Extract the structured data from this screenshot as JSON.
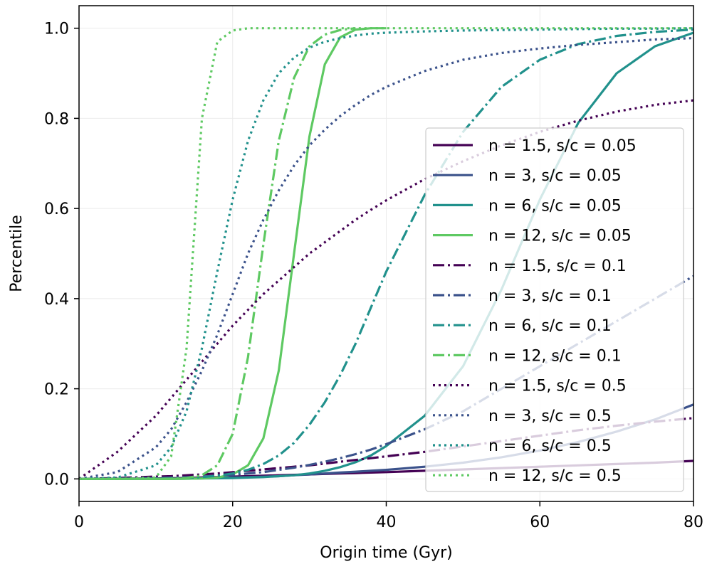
{
  "chart_data": {
    "type": "line",
    "xlabel": "Origin time (Gyr)",
    "ylabel": "Percentile",
    "xlim": [
      0,
      80
    ],
    "ylim": [
      -0.05,
      1.05
    ],
    "xticks": [
      "0",
      "20",
      "40",
      "60",
      "80"
    ],
    "yticks": [
      "0.0",
      "0.2",
      "0.4",
      "0.6",
      "0.8",
      "1.0"
    ],
    "grid": true,
    "legend_position": "center-right",
    "x": [
      0,
      5,
      10,
      12,
      14,
      16,
      18,
      20,
      22,
      24,
      26,
      28,
      30,
      32,
      34,
      36,
      38,
      40,
      45,
      50,
      55,
      60,
      65,
      70,
      75,
      80
    ],
    "series": [
      {
        "name": "n = 1.5, s/c = 0.05",
        "color": "#440154",
        "dash": "solid",
        "values": [
          0,
          0.0005,
          0.001,
          0.0015,
          0.002,
          0.003,
          0.004,
          0.005,
          0.006,
          0.007,
          0.008,
          0.009,
          0.01,
          0.011,
          0.012,
          0.013,
          0.014,
          0.015,
          0.018,
          0.021,
          0.024,
          0.027,
          0.03,
          0.033,
          0.036,
          0.04
        ]
      },
      {
        "name": "n = 3, s/c = 0.05",
        "color": "#3b528b",
        "dash": "solid",
        "values": [
          0,
          0.0002,
          0.0005,
          0.0008,
          0.001,
          0.0015,
          0.002,
          0.003,
          0.004,
          0.005,
          0.006,
          0.008,
          0.01,
          0.012,
          0.014,
          0.016,
          0.018,
          0.02,
          0.027,
          0.036,
          0.048,
          0.063,
          0.082,
          0.105,
          0.132,
          0.165
        ]
      },
      {
        "name": "n = 6, s/c = 0.05",
        "color": "#21918c",
        "dash": "solid",
        "values": [
          0,
          0,
          0,
          0,
          0.0005,
          0.001,
          0.0015,
          0.002,
          0.003,
          0.004,
          0.006,
          0.008,
          0.012,
          0.018,
          0.026,
          0.037,
          0.052,
          0.073,
          0.14,
          0.25,
          0.42,
          0.62,
          0.79,
          0.9,
          0.96,
          0.99
        ]
      },
      {
        "name": "n = 12, s/c = 0.05",
        "color": "#5ec962",
        "dash": "solid",
        "values": [
          0,
          0,
          0,
          0,
          0.0005,
          0.001,
          0.003,
          0.01,
          0.03,
          0.09,
          0.24,
          0.5,
          0.76,
          0.92,
          0.98,
          0.997,
          1.0,
          1.0,
          null,
          null,
          null,
          null,
          null,
          null,
          null,
          null
        ]
      },
      {
        "name": "n = 1.5, s/c = 0.1",
        "color": "#440154",
        "dash": "dashdot",
        "values": [
          0,
          0.002,
          0.005,
          0.006,
          0.008,
          0.01,
          0.012,
          0.015,
          0.018,
          0.021,
          0.024,
          0.027,
          0.03,
          0.034,
          0.038,
          0.042,
          0.046,
          0.05,
          0.06,
          0.072,
          0.084,
          0.096,
          0.108,
          0.118,
          0.127,
          0.135
        ]
      },
      {
        "name": "n = 3, s/c = 0.1",
        "color": "#3b528b",
        "dash": "dashdot",
        "values": [
          0,
          0.0005,
          0.002,
          0.003,
          0.004,
          0.005,
          0.007,
          0.009,
          0.012,
          0.015,
          0.02,
          0.025,
          0.031,
          0.038,
          0.046,
          0.055,
          0.065,
          0.077,
          0.11,
          0.15,
          0.2,
          0.25,
          0.3,
          0.35,
          0.4,
          0.45
        ]
      },
      {
        "name": "n = 6, s/c = 0.1",
        "color": "#21918c",
        "dash": "dashdot",
        "values": [
          0,
          0,
          0.0005,
          0.001,
          0.002,
          0.004,
          0.007,
          0.012,
          0.02,
          0.033,
          0.052,
          0.08,
          0.12,
          0.17,
          0.23,
          0.3,
          0.38,
          0.46,
          0.63,
          0.77,
          0.87,
          0.93,
          0.965,
          0.983,
          0.992,
          0.997
        ]
      },
      {
        "name": "n = 12, s/c = 0.1",
        "color": "#5ec962",
        "dash": "dashdot",
        "values": [
          0,
          0,
          0,
          0.0005,
          0.002,
          0.008,
          0.03,
          0.1,
          0.27,
          0.52,
          0.75,
          0.89,
          0.96,
          0.986,
          0.996,
          1.0,
          null,
          null,
          null,
          null,
          null,
          null,
          null,
          null,
          null,
          null
        ]
      },
      {
        "name": "n = 1.5, s/c = 0.5",
        "color": "#440154",
        "dash": "dotted",
        "values": [
          0,
          0.06,
          0.14,
          0.18,
          0.22,
          0.26,
          0.3,
          0.34,
          0.375,
          0.41,
          0.44,
          0.47,
          0.5,
          0.525,
          0.55,
          0.575,
          0.597,
          0.618,
          0.665,
          0.705,
          0.74,
          0.77,
          0.795,
          0.815,
          0.83,
          0.84
        ]
      },
      {
        "name": "n = 3, s/c = 0.5",
        "color": "#3b528b",
        "dash": "dotted",
        "values": [
          0,
          0.015,
          0.07,
          0.11,
          0.17,
          0.24,
          0.32,
          0.41,
          0.5,
          0.575,
          0.64,
          0.695,
          0.74,
          0.775,
          0.805,
          0.83,
          0.852,
          0.87,
          0.905,
          0.93,
          0.945,
          0.955,
          0.963,
          0.969,
          0.975,
          0.978
        ]
      },
      {
        "name": "n = 6, s/c = 0.5",
        "color": "#21918c",
        "dash": "dotted",
        "values": [
          0,
          0.003,
          0.03,
          0.07,
          0.15,
          0.29,
          0.46,
          0.62,
          0.75,
          0.84,
          0.9,
          0.935,
          0.957,
          0.97,
          0.978,
          0.984,
          0.988,
          0.99,
          0.993,
          0.995,
          0.996,
          0.997,
          0.998,
          0.999,
          0.999,
          1.0
        ]
      },
      {
        "name": "n = 12, s/c = 0.5",
        "color": "#5ec962",
        "dash": "dotted",
        "values": [
          0,
          0,
          0.003,
          0.05,
          0.29,
          0.8,
          0.97,
          0.995,
          1.0,
          1.0,
          1.0,
          1.0,
          1.0,
          1.0,
          1.0,
          1.0,
          1.0,
          1.0,
          1.0,
          1.0,
          1.0,
          1.0,
          1.0,
          1.0,
          1.0,
          1.0
        ]
      }
    ]
  }
}
